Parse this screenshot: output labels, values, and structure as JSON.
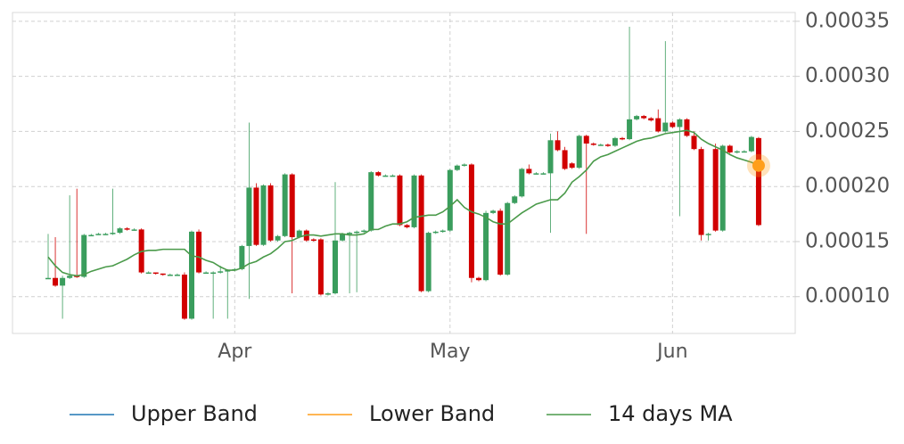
{
  "chart_data": {
    "type": "candlestick",
    "categories": [
      null,
      null,
      null,
      null,
      null,
      null,
      null,
      null,
      null,
      null,
      null,
      null,
      null,
      null,
      null,
      null,
      null,
      null,
      null,
      null,
      null,
      null,
      null,
      null,
      null,
      null,
      "Apr",
      null,
      null,
      null,
      null,
      null,
      null,
      null,
      null,
      null,
      null,
      null,
      null,
      null,
      null,
      null,
      null,
      null,
      null,
      null,
      null,
      null,
      null,
      null,
      null,
      null,
      null,
      null,
      null,
      null,
      "May",
      null,
      null,
      null,
      null,
      null,
      null,
      null,
      null,
      null,
      null,
      null,
      null,
      null,
      null,
      null,
      null,
      null,
      null,
      null,
      null,
      null,
      null,
      null,
      null,
      null,
      null,
      null,
      null,
      null,
      null,
      "Jun",
      null,
      null,
      null,
      null,
      null,
      null,
      null,
      null,
      null,
      null,
      null,
      null
    ],
    "open": [
      0.000117,
      0.000117,
      0.00011,
      0.000117,
      0.000119,
      0.000118,
      0.000156,
      0.000156,
      0.000157,
      0.000157,
      0.000158,
      0.000162,
      0.000161,
      0.000161,
      0.000122,
      0.000122,
      0.000121,
      0.00012,
      0.00012,
      0.00012,
      8e-05,
      0.000159,
      0.000122,
      0.000122,
      0.000122,
      0.000123,
      0.000124,
      0.000125,
      0.000146,
      0.000199,
      0.000147,
      0.000201,
      0.000151,
      0.000155,
      0.000211,
      0.000154,
      0.00016,
      0.000152,
      0.000152,
      0.000102,
      0.000103,
      0.000151,
      0.000157,
      0.000158,
      0.000159,
      0.00016,
      0.000213,
      0.00021,
      0.00021,
      0.00021,
      0.000165,
      0.000163,
      0.00021,
      0.000105,
      0.000158,
      0.000159,
      0.00016,
      0.000215,
      0.000219,
      0.00022,
      0.000117,
      0.000115,
      0.000176,
      0.000178,
      0.00012,
      0.000185,
      0.000191,
      0.000216,
      0.000212,
      0.000212,
      0.000212,
      0.000242,
      0.000233,
      0.000221,
      0.000217,
      0.000246,
      0.000239,
      0.000238,
      0.000238,
      0.000237,
      0.000244,
      0.000243,
      0.000261,
      0.000264,
      0.000262,
      0.000262,
      0.00025,
      0.000258,
      0.000254,
      0.000261,
      0.000246,
      0.000234,
      0.000156,
      0.000234,
      0.00016,
      0.000237,
      0.000231,
      0.000232,
      0.000232,
      0.000244
    ],
    "high": [
      0.000157,
      0.000154,
      0.000119,
      0.000192,
      0.000198,
      0.000157,
      0.000157,
      0.000158,
      0.000158,
      0.000198,
      0.000163,
      0.000163,
      0.000162,
      0.000162,
      0.000123,
      0.000122,
      0.000121,
      0.000121,
      0.000121,
      0.000122,
      0.00016,
      0.000161,
      0.000123,
      0.000123,
      0.000128,
      0.000125,
      0.000126,
      0.000147,
      0.000258,
      0.000203,
      0.000202,
      0.000203,
      0.000156,
      0.000212,
      0.000212,
      0.000161,
      0.000161,
      0.000153,
      0.000153,
      0.000104,
      0.000204,
      0.000158,
      0.000159,
      0.00016,
      0.000161,
      0.000214,
      0.000214,
      0.000211,
      0.000211,
      0.000211,
      0.000166,
      0.000211,
      0.000211,
      0.000159,
      0.00016,
      0.000161,
      0.000216,
      0.00022,
      0.000221,
      0.000221,
      0.000118,
      0.000178,
      0.000179,
      0.00018,
      0.000186,
      0.000192,
      0.000217,
      0.00022,
      0.000213,
      0.000213,
      0.000248,
      0.00025,
      0.000236,
      0.000222,
      0.000247,
      0.000247,
      0.00024,
      0.000239,
      0.000239,
      0.000245,
      0.000245,
      0.000345,
      0.000265,
      0.000265,
      0.000263,
      0.00027,
      0.000332,
      0.000259,
      0.000262,
      0.000262,
      0.00025,
      0.000236,
      0.000158,
      0.000239,
      0.000238,
      0.000238,
      0.000233,
      0.000233,
      0.000246,
      0.000245
    ],
    "low": [
      0.000116,
      0.000109,
      8e-05,
      0.000116,
      0.000117,
      0.000117,
      0.000155,
      0.000156,
      0.000156,
      0.000156,
      0.000157,
      0.00016,
      0.00016,
      0.000121,
      0.000121,
      0.00012,
      0.000119,
      0.000119,
      0.000119,
      7.9e-05,
      7.9e-05,
      0.000121,
      0.000121,
      8e-05,
      0.000121,
      8e-05,
      0.000123,
      0.000124,
      9.8e-05,
      0.000146,
      0.000146,
      0.00015,
      0.00015,
      0.000154,
      0.000103,
      0.000153,
      0.00015,
      0.00015,
      0.000101,
      0.000101,
      0.000102,
      0.00015,
      0.000103,
      0.000104,
      0.000158,
      0.000159,
      0.000209,
      0.000209,
      0.000209,
      0.000164,
      0.000162,
      0.000162,
      0.000104,
      0.000104,
      0.000157,
      0.000158,
      0.000159,
      0.000214,
      0.000218,
      0.000113,
      0.000114,
      0.000114,
      0.000175,
      0.000119,
      0.000119,
      0.000184,
      0.00019,
      0.000211,
      0.000211,
      0.000211,
      0.000158,
      0.000232,
      0.000215,
      0.000216,
      0.000216,
      0.000157,
      0.000237,
      0.000237,
      0.000236,
      0.000236,
      0.000242,
      0.000242,
      0.00026,
      0.000261,
      0.000259,
      0.000249,
      0.000249,
      0.000253,
      0.000173,
      0.000245,
      0.000233,
      0.000151,
      0.000151,
      0.000159,
      0.000159,
      0.00023,
      0.00023,
      0.000231,
      0.000231,
      0.000164
    ],
    "close": [
      0.000117,
      0.00011,
      0.000117,
      0.000119,
      0.000118,
      0.000156,
      0.000156,
      0.000157,
      0.000157,
      0.000158,
      0.000162,
      0.000161,
      0.000161,
      0.000122,
      0.000122,
      0.000121,
      0.00012,
      0.00012,
      0.00012,
      8e-05,
      0.000159,
      0.000122,
      0.000122,
      0.000122,
      0.000123,
      0.000124,
      0.000125,
      0.000146,
      0.000199,
      0.000147,
      0.000201,
      0.000151,
      0.000155,
      0.000211,
      0.000154,
      0.00016,
      0.000151,
      0.000151,
      0.000102,
      0.000103,
      0.000151,
      0.000157,
      0.000158,
      0.000159,
      0.00016,
      0.000213,
      0.00021,
      0.00021,
      0.00021,
      0.000165,
      0.000163,
      0.00021,
      0.000105,
      0.000158,
      0.000159,
      0.00016,
      0.000215,
      0.000219,
      0.00022,
      0.000117,
      0.000115,
      0.000176,
      0.000178,
      0.00012,
      0.000185,
      0.000191,
      0.000216,
      0.000212,
      0.000212,
      0.000212,
      0.000242,
      0.000233,
      0.000216,
      0.000217,
      0.000246,
      0.000239,
      0.000238,
      0.000238,
      0.000237,
      0.000244,
      0.000243,
      0.000261,
      0.000264,
      0.000262,
      0.00026,
      0.00025,
      0.000258,
      0.000254,
      0.000261,
      0.000246,
      0.000234,
      0.000156,
      0.000157,
      0.00016,
      0.000237,
      0.000231,
      0.000232,
      0.000232,
      0.000245,
      0.000165
    ],
    "up_color": "#3a9d5d",
    "down_color": "#d10000",
    "series": [
      {
        "name": "14 days MA",
        "color": "#4a9a4a",
        "values": [
          0.000136,
          0.000128,
          0.000122,
          0.00012,
          0.000119,
          0.00012,
          0.000123,
          0.000125,
          0.000127,
          0.000128,
          0.000131,
          0.000134,
          0.000138,
          0.000141,
          0.000142,
          0.000142,
          0.000143,
          0.000143,
          0.000143,
          0.000143,
          0.000137,
          0.000136,
          0.000133,
          0.000131,
          0.000127,
          0.000124,
          0.000124,
          0.000126,
          0.00013,
          0.000132,
          0.000136,
          0.000139,
          0.000144,
          0.00015,
          0.000151,
          0.000154,
          0.000156,
          0.000156,
          0.000155,
          0.000156,
          0.000157,
          0.000157,
          0.000156,
          0.000156,
          0.000157,
          0.000161,
          0.000161,
          0.000164,
          0.000166,
          0.000166,
          0.000168,
          0.000172,
          0.000173,
          0.000174,
          0.000174,
          0.000177,
          0.000182,
          0.000188,
          0.000181,
          0.000177,
          0.000175,
          0.000172,
          0.000168,
          0.000166,
          0.000166,
          0.000171,
          0.000176,
          0.00018,
          0.000184,
          0.000186,
          0.000188,
          0.000188,
          0.000194,
          0.000204,
          0.000209,
          0.000215,
          0.000223,
          0.000227,
          0.000229,
          0.000232,
          0.000235,
          0.000238,
          0.000241,
          0.000243,
          0.000244,
          0.000246,
          0.000248,
          0.000249,
          0.00025,
          0.000251,
          0.000249,
          0.000243,
          0.000239,
          0.000236,
          0.000233,
          0.000229,
          0.000226,
          0.000224,
          0.000222,
          0.000219
        ]
      }
    ],
    "bands": [
      {
        "name": "Upper Band",
        "color": "#1f77b4"
      },
      {
        "name": "Lower Band",
        "color": "#ff9e1b"
      }
    ],
    "last_marker_color": "#ff9e1b",
    "ylim": [
      6.66e-05,
      0.000358
    ],
    "yticks": [
      {
        "value": 0.0001,
        "label": "0.00010"
      },
      0.00015,
      {
        "value": 0.0002,
        "label": "0.00020"
      },
      0.00025,
      {
        "value": 0.0003,
        "label": "0.00030"
      },
      0.00035
    ],
    "grid": true,
    "y_axis_side": "right"
  }
}
